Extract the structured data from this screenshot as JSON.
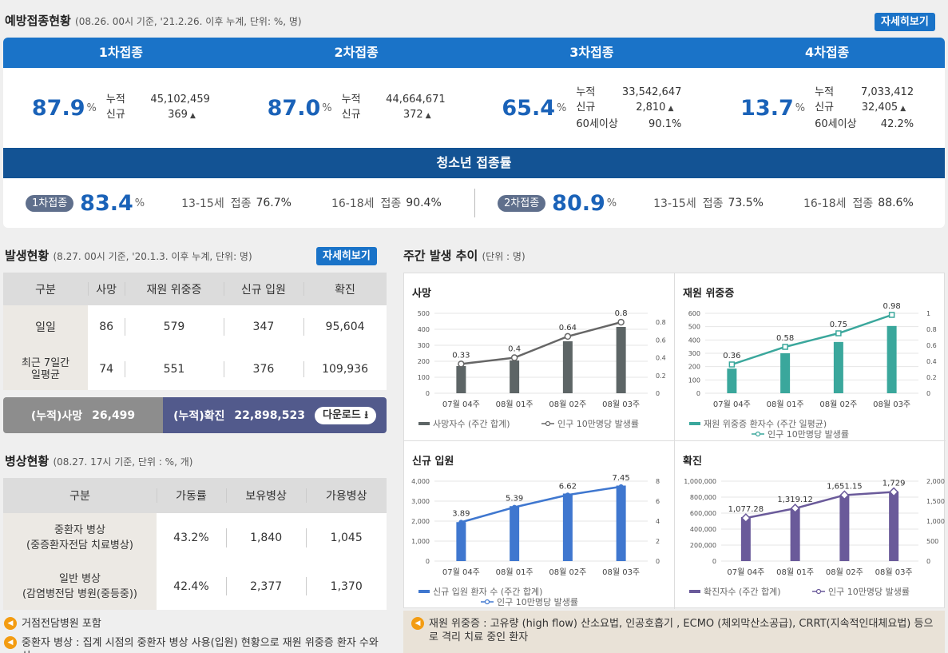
{
  "vaccine": {
    "title": "예방접종현황",
    "note": "(08.26. 00시 기준, '21.2.26. 이후 누계, 단위: %, 명)",
    "more": "자세히보기",
    "cols": [
      {
        "head": "1차접종",
        "pct": "87.9",
        "unit": "%",
        "rows": [
          [
            "누적",
            "45,102,459"
          ],
          [
            "신규",
            "369"
          ]
        ]
      },
      {
        "head": "2차접종",
        "pct": "87.0",
        "unit": "%",
        "rows": [
          [
            "누적",
            "44,664,671"
          ],
          [
            "신규",
            "372"
          ]
        ]
      },
      {
        "head": "3차접종",
        "pct": "65.4",
        "unit": "%",
        "rows": [
          [
            "누적",
            "33,542,647"
          ],
          [
            "신규",
            "2,810"
          ],
          [
            "60세이상",
            "90.1%"
          ]
        ]
      },
      {
        "head": "4차접종",
        "pct": "13.7",
        "unit": "%",
        "rows": [
          [
            "누적",
            "7,033,412"
          ],
          [
            "신규",
            "32,405"
          ],
          [
            "60세이상",
            "42.2%"
          ]
        ]
      }
    ],
    "teen": {
      "title": "청소년 접종률",
      "first": {
        "pill": "1차접종",
        "pct": "83.4",
        "unit": "%",
        "a_age": "13-15세",
        "a_lbl": "접종",
        "a_val": "76.7%",
        "b_age": "16-18세",
        "b_lbl": "접종",
        "b_val": "90.4%"
      },
      "second": {
        "pill": "2차접종",
        "pct": "80.9",
        "unit": "%",
        "a_age": "13-15세",
        "a_lbl": "접종",
        "a_val": "73.5%",
        "b_age": "16-18세",
        "b_lbl": "접종",
        "b_val": "88.6%"
      }
    }
  },
  "occurrence": {
    "title": "발생현황",
    "note": "(8.27. 00시 기준, '20.1.3. 이후 누계, 단위: 명)",
    "more": "자세히보기",
    "headers": [
      "구분",
      "사망",
      "재원 위중증",
      "신규 입원",
      "확진"
    ],
    "rows": [
      [
        "일일",
        "86",
        "579",
        "347",
        "95,604"
      ],
      [
        "최근 7일간\n일평균",
        "74",
        "551",
        "376",
        "109,936"
      ]
    ],
    "cum_death_label": "(누적)사망",
    "cum_death": "26,499",
    "cum_conf_label": "(누적)확진",
    "cum_conf": "22,898,523",
    "download": "다운로드"
  },
  "beds": {
    "title": "병상현황",
    "note": "(08.27. 17시 기준, 단위 : %, 개)",
    "headers": [
      "구분",
      "가동률",
      "보유병상",
      "가용병상"
    ],
    "rows": [
      [
        "중환자 병상\n(중증환자전담 치료병상)",
        "43.2%",
        "1,840",
        "1,045"
      ],
      [
        "일반 병상\n(감염병전담 병원(중등중))",
        "42.4%",
        "2,377",
        "1,370"
      ]
    ]
  },
  "notes_left": [
    "거점전담병원 포함",
    "중환자 병상 : 집계 시점의 중환자 병상 사용(입원) 현황으로 재원 위중증 환자 수와 상"
  ],
  "weekly": {
    "title": "주간 발생 추이",
    "note": "(단위 : 명)"
  },
  "chart_data": [
    {
      "type": "bar",
      "title": "사망",
      "categories": [
        "07월 04주",
        "08월 01주",
        "08월 02주",
        "08월 03주"
      ],
      "series": [
        {
          "name": "사망자수 (주간 합계)",
          "values": [
            170,
            205,
            325,
            415
          ]
        },
        {
          "name": "인구 10만명당 발생률",
          "type": "line",
          "axis": "right",
          "values": [
            0.33,
            0.4,
            0.64,
            0.8
          ]
        }
      ],
      "y_left": [
        0,
        100,
        200,
        300,
        400,
        500
      ],
      "y_right": [
        0,
        0.2,
        0.4,
        0.6,
        0.8
      ],
      "y_left_labels": [
        "0",
        "100",
        "200",
        "300",
        "400",
        "500"
      ],
      "y_right_labels": [
        "0",
        "0.2",
        "0.4",
        "0.6",
        "0.8"
      ],
      "ylim": [
        0,
        500
      ],
      "ylim_right": [
        0,
        0.9
      ],
      "labels": [
        "0.33",
        "0.4",
        "0.64",
        "0.8"
      ],
      "bar_color": "#5d6566",
      "line_color": "#666666"
    },
    {
      "type": "bar",
      "title": "재원 위중증",
      "categories": [
        "07월 04주",
        "08월 01주",
        "08월 02주",
        "08월 03주"
      ],
      "series": [
        {
          "name": "재원 위중증 환자수 (주간 일평균)",
          "values": [
            185,
            300,
            385,
            505
          ]
        },
        {
          "name": "인구 10만명당 발생률",
          "type": "line",
          "axis": "right",
          "values": [
            0.36,
            0.58,
            0.75,
            0.98
          ]
        }
      ],
      "y_left": [
        0,
        100,
        200,
        300,
        400,
        500,
        600
      ],
      "y_right": [
        0,
        0.2,
        0.4,
        0.6,
        0.8,
        1
      ],
      "y_left_labels": [
        "0",
        "100",
        "200",
        "300",
        "400",
        "500",
        "600"
      ],
      "y_right_labels": [
        "0",
        "0.2",
        "0.4",
        "0.6",
        "0.8",
        "1"
      ],
      "ylim": [
        0,
        600
      ],
      "ylim_right": [
        0,
        1
      ],
      "labels": [
        "0.36",
        "0.58",
        "0.75",
        "0.98"
      ],
      "bar_color": "#3aa79c",
      "line_color": "#3aa79c"
    },
    {
      "type": "bar",
      "title": "신규 입원",
      "categories": [
        "07월 04주",
        "08월 01주",
        "08월 02주",
        "08월 03주"
      ],
      "series": [
        {
          "name": "신규 입원 환자 수 (주간 합계)",
          "values": [
            1950,
            2750,
            3380,
            3780
          ]
        },
        {
          "name": "인구 10만명당 발생률",
          "type": "line",
          "axis": "right",
          "values": [
            3.89,
            5.39,
            6.62,
            7.45
          ]
        }
      ],
      "y_left": [
        0,
        1000,
        2000,
        3000,
        4000
      ],
      "y_right": [
        0,
        2,
        4,
        6,
        8
      ],
      "y_left_labels": [
        "0",
        "1,000",
        "2,000",
        "3,000",
        "4,000"
      ],
      "y_right_labels": [
        "0",
        "2",
        "4",
        "6",
        "8"
      ],
      "ylim": [
        0,
        4000
      ],
      "ylim_right": [
        0,
        8
      ],
      "labels": [
        "3.89",
        "5.39",
        "6.62",
        "7.45"
      ],
      "bar_color": "#3f77cf",
      "line_color": "#3f77cf"
    },
    {
      "type": "bar",
      "title": "확진",
      "categories": [
        "07월 04주",
        "08월 01주",
        "08월 02주",
        "08월 03주"
      ],
      "series": [
        {
          "name": "확진자수 (주간 합계)",
          "values": [
            550000,
            660000,
            830000,
            870000
          ]
        },
        {
          "name": "인구 10만명당 발생률",
          "type": "line",
          "axis": "right",
          "values": [
            1077.28,
            1319.12,
            1651.15,
            1729
          ]
        }
      ],
      "y_left": [
        0,
        200000,
        400000,
        600000,
        800000,
        1000000
      ],
      "y_right": [
        0,
        500,
        1000,
        1500,
        2000
      ],
      "y_left_labels": [
        "0",
        "200,000",
        "400,000",
        "600,000",
        "800,000",
        "1,000,000"
      ],
      "y_right_labels": [
        "0",
        "500",
        "1,000",
        "1,500",
        "2,000"
      ],
      "ylim": [
        0,
        1000000
      ],
      "ylim_right": [
        0,
        2000
      ],
      "labels": [
        "1,077.28",
        "1,319.12",
        "1,651.15",
        "1,729"
      ],
      "bar_color": "#6a5a9a",
      "line_color": "#6a5a9a"
    }
  ],
  "note_right": "재원 위중증 : 고유량 (high flow) 산소요법, 인공호흡기 , ECMO (체외막산소공급), CRRT(지속적인대체요법) 등으로 격리 치료 중인 환자",
  "colors": {
    "primary": "#1a73c8",
    "teen": "#135394",
    "pct": "#1a62b8"
  }
}
